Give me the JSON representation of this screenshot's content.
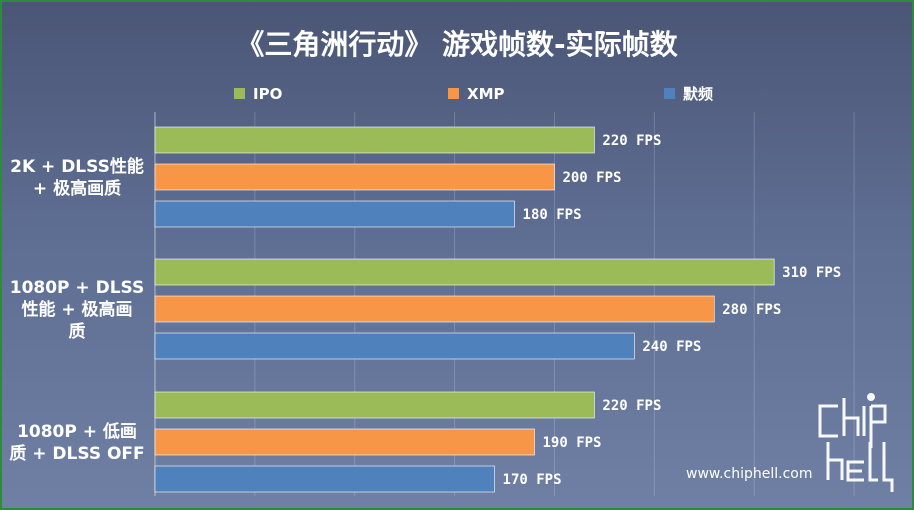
{
  "chart_data": {
    "type": "bar",
    "orientation": "horizontal",
    "title": "《三角洲行动》 游戏帧数-实际帧数",
    "categories": [
      [
        "2K + DLSS性能",
        "+ 极高画质"
      ],
      [
        "1080P + DLSS",
        "性能 + 极高画",
        "质"
      ],
      [
        "1080P + 低画",
        "质 + DLSS OFF"
      ]
    ],
    "series": [
      {
        "name": "IPO",
        "color": "#9bbb59",
        "values": [
          220,
          310,
          220
        ],
        "labels": [
          "220 FPS",
          "310 FPS",
          "220 FPS"
        ]
      },
      {
        "name": "XMP",
        "color": "#f79646",
        "values": [
          200,
          280,
          190
        ],
        "labels": [
          "200 FPS",
          "280 FPS",
          "190 FPS"
        ]
      },
      {
        "name": "默频",
        "color": "#4f81bd",
        "values": [
          180,
          240,
          170
        ],
        "labels": [
          "180 FPS",
          "240 FPS",
          "170 FPS"
        ]
      }
    ],
    "xlim": [
      0,
      375
    ],
    "grid": true,
    "legend_position": "top"
  },
  "watermark": {
    "logo_text": "chiphell",
    "url": "www.chiphell.com"
  }
}
